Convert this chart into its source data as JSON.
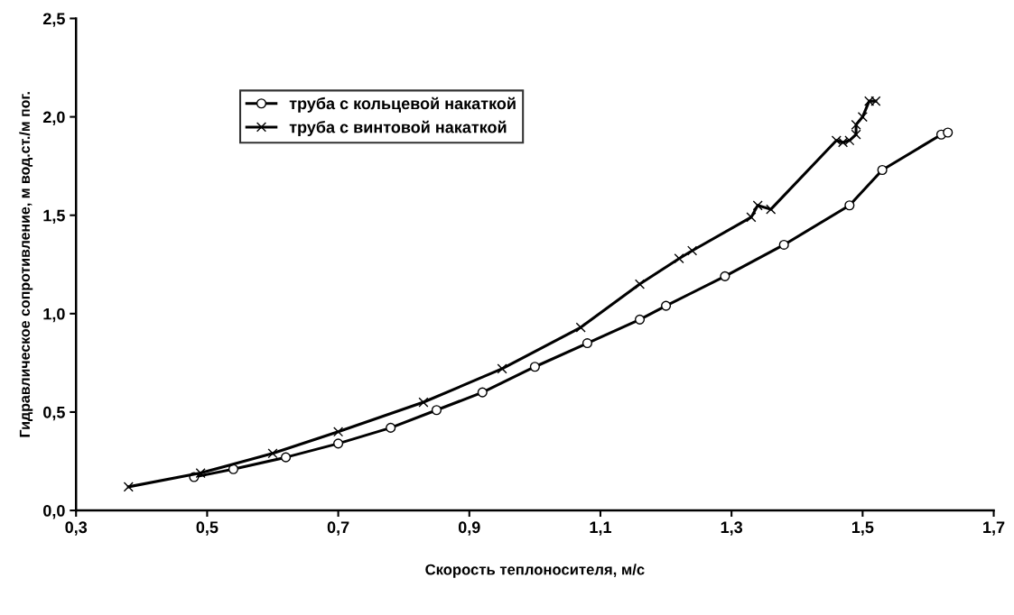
{
  "chart_data": {
    "type": "line",
    "xlabel": "Скорость теплоносителя, м/с",
    "ylabel": "Гидравлическое сопротивление, м вод.ст./м пог.",
    "xlim": [
      0.3,
      1.7
    ],
    "xticks": [
      {
        "value": 0.3,
        "label": "0,3"
      },
      {
        "value": 0.5,
        "label": "0,5"
      },
      {
        "value": 0.7,
        "label": "0,7"
      },
      {
        "value": 0.9,
        "label": "0,9"
      },
      {
        "value": 1.1,
        "label": "1,1"
      },
      {
        "value": 1.3,
        "label": "1,3"
      },
      {
        "value": 1.5,
        "label": "1,5"
      },
      {
        "value": 1.7,
        "label": "1,7"
      }
    ],
    "ylim": [
      0,
      2.5
    ],
    "yticks": [
      {
        "value": 0,
        "label": "0,0"
      },
      {
        "value": 0.5,
        "label": "0,5"
      },
      {
        "value": 1.0,
        "label": "1,0"
      },
      {
        "value": 1.5,
        "label": "1,5"
      },
      {
        "value": 2.0,
        "label": "2,0"
      },
      {
        "value": 2.5,
        "label": "2,5"
      }
    ],
    "grid": false,
    "legend": "top left",
    "line_style": "solid",
    "series": [
      {
        "name": "труба с кольцевой накаткой",
        "color": "#000000",
        "marker": "circle",
        "x": [
          0.48,
          0.54,
          0.62,
          0.7,
          0.78,
          0.85,
          0.92,
          1.0,
          1.08,
          1.16,
          1.2,
          1.29,
          1.38,
          1.48,
          1.53,
          1.62,
          1.63
        ],
        "values": [
          0.17,
          0.21,
          0.27,
          0.34,
          0.42,
          0.51,
          0.6,
          0.73,
          0.85,
          0.97,
          1.04,
          1.19,
          1.35,
          1.55,
          1.73,
          1.91,
          1.92
        ]
      },
      {
        "name": "труба с винтовой накаткой",
        "color": "#000000",
        "marker": "cross",
        "x": [
          0.38,
          0.49,
          0.6,
          0.7,
          0.83,
          0.95,
          1.07,
          1.16,
          1.22,
          1.24,
          1.33,
          1.34,
          1.36,
          1.46,
          1.47,
          1.48,
          1.49,
          1.49,
          1.5,
          1.51,
          1.52
        ],
        "values": [
          0.12,
          0.19,
          0.29,
          0.4,
          0.55,
          0.72,
          0.93,
          1.15,
          1.28,
          1.32,
          1.49,
          1.55,
          1.53,
          1.88,
          1.87,
          1.88,
          1.91,
          1.96,
          2.0,
          2.08,
          2.08
        ]
      }
    ]
  }
}
